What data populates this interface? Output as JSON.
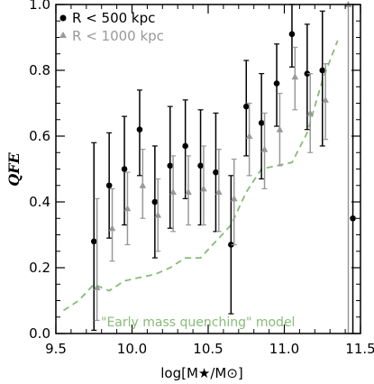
{
  "chart_data": {
    "type": "scatter",
    "xlabel": "log[M★/M⊙]",
    "ylabel": "QFE",
    "xlim": [
      9.5,
      11.5
    ],
    "ylim": [
      0.0,
      1.0
    ],
    "xticks": [
      "9.5",
      "10.0",
      "10.5",
      "11.0",
      "11.5"
    ],
    "xtick_values": [
      9.5,
      10.0,
      10.5,
      11.0,
      11.5
    ],
    "yticks": [
      "0.0",
      "0.2",
      "0.4",
      "0.6",
      "0.8",
      "1.0"
    ],
    "ytick_values": [
      0.0,
      0.2,
      0.4,
      0.6,
      0.8,
      1.0
    ],
    "grid": false,
    "legend_position": "top-left",
    "series": [
      {
        "name": "R < 500 kpc",
        "marker": "circle",
        "color": "#000000",
        "points": [
          {
            "x": 9.75,
            "y": 0.28,
            "ylo": 0.01,
            "yhi": 0.58
          },
          {
            "x": 9.85,
            "y": 0.45,
            "ylo": 0.29,
            "yhi": 0.61
          },
          {
            "x": 9.95,
            "y": 0.5,
            "ylo": 0.33,
            "yhi": 0.66
          },
          {
            "x": 10.05,
            "y": 0.62,
            "ylo": 0.48,
            "yhi": 0.74
          },
          {
            "x": 10.15,
            "y": 0.4,
            "ylo": 0.23,
            "yhi": 0.57
          },
          {
            "x": 10.25,
            "y": 0.51,
            "ylo": 0.32,
            "yhi": 0.69
          },
          {
            "x": 10.35,
            "y": 0.57,
            "ylo": 0.41,
            "yhi": 0.71
          },
          {
            "x": 10.45,
            "y": 0.51,
            "ylo": 0.33,
            "yhi": 0.68
          },
          {
            "x": 10.55,
            "y": 0.49,
            "ylo": 0.31,
            "yhi": 0.67
          },
          {
            "x": 10.65,
            "y": 0.27,
            "ylo": 0.06,
            "yhi": 0.48
          },
          {
            "x": 10.75,
            "y": 0.69,
            "ylo": 0.54,
            "yhi": 0.83
          },
          {
            "x": 10.85,
            "y": 0.64,
            "ylo": 0.47,
            "yhi": 0.79
          },
          {
            "x": 10.95,
            "y": 0.76,
            "ylo": 0.63,
            "yhi": 0.88
          },
          {
            "x": 11.05,
            "y": 0.91,
            "ylo": 0.81,
            "yhi": 1.0
          },
          {
            "x": 11.15,
            "y": 0.79,
            "ylo": 0.62,
            "yhi": 0.94
          },
          {
            "x": 11.25,
            "y": 0.8,
            "ylo": 0.57,
            "yhi": 0.98
          },
          {
            "x": 11.45,
            "y": 0.35,
            "ylo": 0.0,
            "yhi": 1.0
          }
        ]
      },
      {
        "name": "R < 1000 kpc",
        "marker": "triangle",
        "color": "#999999",
        "points": [
          {
            "x": 9.77,
            "y": 0.14,
            "ylo": 0.04,
            "yhi": 0.41
          },
          {
            "x": 9.87,
            "y": 0.32,
            "ylo": 0.22,
            "yhi": 0.44
          },
          {
            "x": 9.97,
            "y": 0.38,
            "ylo": 0.27,
            "yhi": 0.49
          },
          {
            "x": 10.07,
            "y": 0.45,
            "ylo": 0.35,
            "yhi": 0.56
          },
          {
            "x": 10.17,
            "y": 0.36,
            "ylo": 0.25,
            "yhi": 0.47
          },
          {
            "x": 10.27,
            "y": 0.43,
            "ylo": 0.31,
            "yhi": 0.54
          },
          {
            "x": 10.37,
            "y": 0.43,
            "ylo": 0.33,
            "yhi": 0.54
          },
          {
            "x": 10.47,
            "y": 0.44,
            "ylo": 0.33,
            "yhi": 0.57
          },
          {
            "x": 10.57,
            "y": 0.43,
            "ylo": 0.31,
            "yhi": 0.56
          },
          {
            "x": 10.67,
            "y": 0.41,
            "ylo": 0.27,
            "yhi": 0.53
          },
          {
            "x": 10.77,
            "y": 0.6,
            "ylo": 0.48,
            "yhi": 0.7
          },
          {
            "x": 10.87,
            "y": 0.56,
            "ylo": 0.44,
            "yhi": 0.67
          },
          {
            "x": 10.97,
            "y": 0.62,
            "ylo": 0.51,
            "yhi": 0.73
          },
          {
            "x": 11.07,
            "y": 0.78,
            "ylo": 0.68,
            "yhi": 0.87
          },
          {
            "x": 11.17,
            "y": 0.67,
            "ylo": 0.55,
            "yhi": 0.79
          },
          {
            "x": 11.27,
            "y": 0.71,
            "ylo": 0.59,
            "yhi": 0.82
          },
          {
            "x": 11.42,
            "y": 1.0,
            "ylo": 0.0,
            "yhi": 1.0
          }
        ]
      }
    ],
    "model_line": {
      "label": "\"Early mass quenching\" model",
      "color": "#88bb77",
      "style": "dashed",
      "x": [
        9.55,
        9.65,
        9.75,
        9.85,
        9.95,
        10.05,
        10.15,
        10.25,
        10.35,
        10.45,
        10.55,
        10.65,
        10.75,
        10.85,
        10.95,
        11.05,
        11.15,
        11.25,
        11.35
      ],
      "y": [
        0.07,
        0.1,
        0.15,
        0.13,
        0.16,
        0.17,
        0.18,
        0.2,
        0.23,
        0.23,
        0.28,
        0.33,
        0.43,
        0.5,
        0.51,
        0.52,
        0.61,
        0.77,
        0.89
      ]
    }
  },
  "legend": {
    "item1": "R < 500 kpc",
    "item2": "R < 1000 kpc"
  },
  "annotation": "\"Early mass quenching\" model",
  "axes": {
    "xlabel": "log[M★/M⊙]",
    "ylabel": "QFE"
  }
}
